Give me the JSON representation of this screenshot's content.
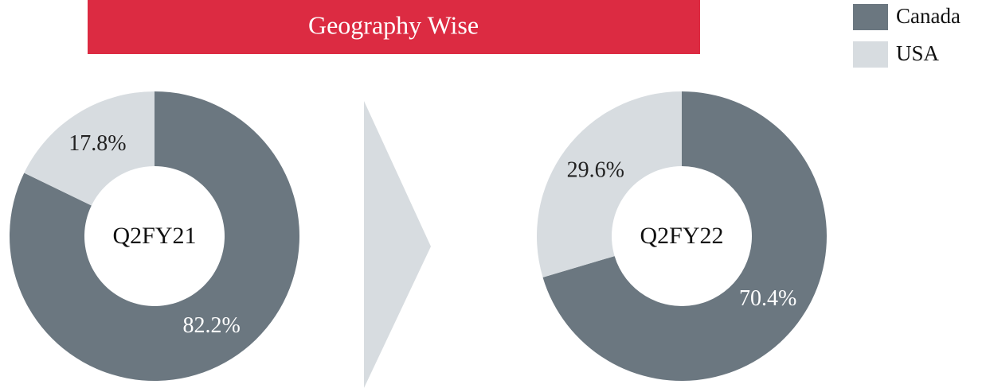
{
  "header": {
    "title": "Geography Wise"
  },
  "chart_data": [
    {
      "type": "donut",
      "center_label": "Q2FY21",
      "categories": [
        "Canada",
        "USA"
      ],
      "values": [
        82.2,
        17.8
      ],
      "value_labels": [
        "82.2%",
        "17.8%"
      ],
      "colors": [
        "#6b7780",
        "#d7dce0"
      ]
    },
    {
      "type": "donut",
      "center_label": "Q2FY22",
      "categories": [
        "Canada",
        "USA"
      ],
      "values": [
        70.4,
        29.6
      ],
      "value_labels": [
        "70.4%",
        "29.6%"
      ],
      "colors": [
        "#6b7780",
        "#d7dce0"
      ]
    }
  ]
}
